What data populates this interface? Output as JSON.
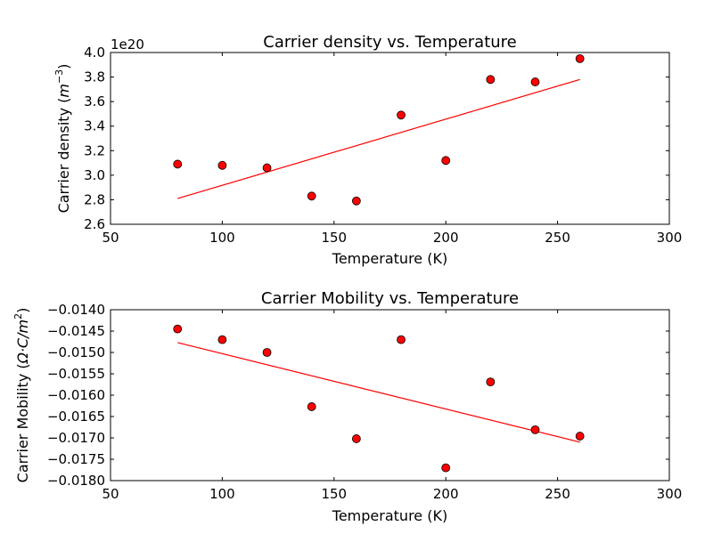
{
  "chart_data": [
    {
      "type": "scatter",
      "title": "Carrier density vs. Temperature",
      "xlabel": "Temperature (K)",
      "ylabel_text": "Carrier density (",
      "ylabel_math": "m",
      "ylabel_sup": "−3",
      "ylabel_close": ")",
      "offset_label": "1e20",
      "xlim": [
        50,
        300
      ],
      "ylim": [
        2.6,
        4.0
      ],
      "x_ticks": [
        50,
        100,
        150,
        200,
        250,
        300
      ],
      "y_ticks": [
        2.6,
        2.8,
        3.0,
        3.2,
        3.4,
        3.6,
        3.8,
        4.0
      ],
      "x_tick_labels": [
        "50",
        "100",
        "150",
        "200",
        "250",
        "300"
      ],
      "y_tick_labels": [
        "2.6",
        "2.8",
        "3.0",
        "3.2",
        "3.4",
        "3.6",
        "3.8",
        "4.0"
      ],
      "points": {
        "x": [
          80,
          100,
          120,
          140,
          160,
          180,
          200,
          220,
          240,
          260
        ],
        "y": [
          3.09,
          3.08,
          3.06,
          2.83,
          2.79,
          3.49,
          3.12,
          3.78,
          3.76,
          3.95
        ]
      },
      "fit_line": {
        "x": [
          80,
          260
        ],
        "y": [
          2.81,
          3.78
        ]
      },
      "marker_color": "#ff0000",
      "line_color": "#ff0000",
      "grid": false
    },
    {
      "type": "scatter",
      "title": "Carrier Mobility vs. Temperature",
      "xlabel": "Temperature (K)",
      "ylabel_text": "Carrier Mobility (",
      "ylabel_math": "Ω·C/m",
      "ylabel_sup": "2",
      "ylabel_close": ")",
      "xlim": [
        50,
        300
      ],
      "ylim": [
        -0.018,
        -0.014
      ],
      "x_ticks": [
        50,
        100,
        150,
        200,
        250,
        300
      ],
      "y_ticks": [
        -0.018,
        -0.0175,
        -0.017,
        -0.0165,
        -0.016,
        -0.0155,
        -0.015,
        -0.0145,
        -0.014
      ],
      "x_tick_labels": [
        "50",
        "100",
        "150",
        "200",
        "250",
        "300"
      ],
      "y_tick_labels": [
        "−0.0180",
        "−0.0175",
        "−0.0170",
        "−0.0165",
        "−0.0160",
        "−0.0155",
        "−0.0150",
        "−0.0145",
        "−0.0140"
      ],
      "points": {
        "x": [
          80,
          100,
          120,
          140,
          160,
          180,
          200,
          220,
          240,
          260
        ],
        "y": [
          -0.01445,
          -0.0147,
          -0.015,
          -0.01627,
          -0.01702,
          -0.0147,
          -0.0177,
          -0.01569,
          -0.01681,
          -0.01696
        ]
      },
      "fit_line": {
        "x": [
          80,
          260
        ],
        "y": [
          -0.01477,
          -0.0171
        ]
      },
      "marker_color": "#ff0000",
      "line_color": "#ff0000",
      "grid": false
    }
  ]
}
